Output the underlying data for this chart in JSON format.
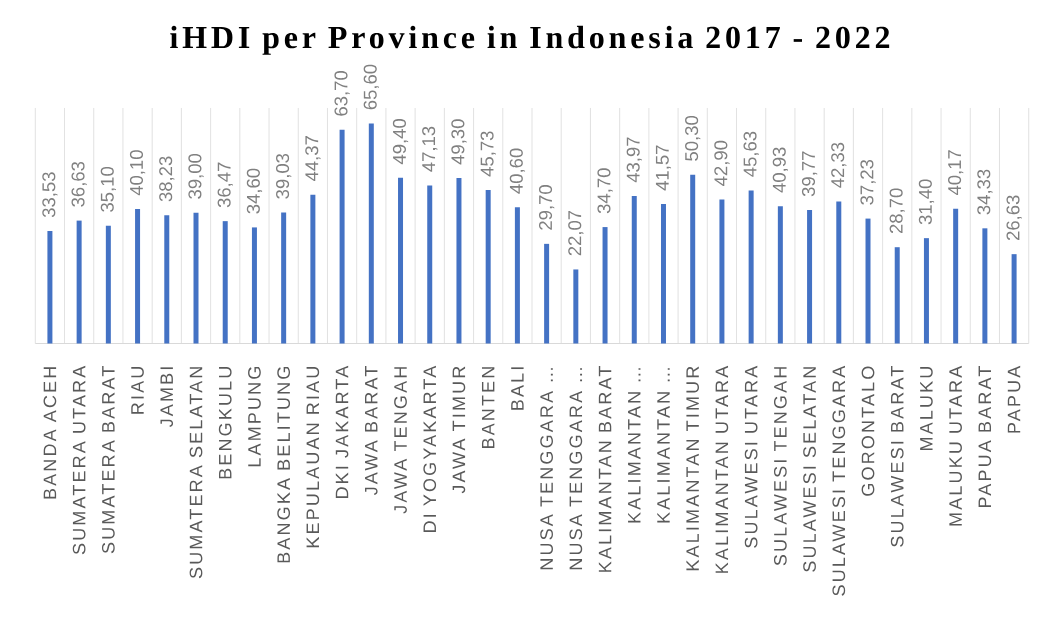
{
  "chart_data": {
    "type": "bar",
    "title": "iHDI per Province in Indonesia 2017 - 2022",
    "categories": [
      "BANDA ACEH",
      "SUMATERA UTARA",
      "SUMATERA BARAT",
      "RIAU",
      "JAMBI",
      "SUMATERA SELATAN",
      "BENGKULU",
      "LAMPUNG",
      "BANGKA BELITUNG",
      "KEPULAUAN RIAU",
      "DKI JAKARTA",
      "JAWA BARAT",
      "JAWA TENGAH",
      "DI YOGYAKARTA",
      "JAWA TIMUR",
      "BANTEN",
      "BALI",
      "NUSA TENGGARA …",
      "NUSA TENGGARA …",
      "KALIMANTAN BARAT",
      "KALIMANTAN …",
      "KALIMANTAN …",
      "KALIMANTAN TIMUR",
      "KALIMANTAN UTARA",
      "SULAWESI UTARA",
      "SULAWESI TENGAH",
      "SULAWESI SELATAN",
      "SULAWESI TENGGARA",
      "GORONTALO",
      "SULAWESI BARAT",
      "MALUKU",
      "MALUKU UTARA",
      "PAPUA BARAT",
      "PAPUA"
    ],
    "values": [
      33.53,
      36.63,
      35.1,
      40.1,
      38.23,
      39.0,
      36.47,
      34.6,
      39.03,
      44.37,
      63.7,
      65.6,
      49.4,
      47.13,
      49.3,
      45.73,
      40.6,
      29.7,
      22.07,
      34.7,
      43.97,
      41.57,
      50.3,
      42.9,
      45.63,
      40.93,
      39.77,
      42.33,
      37.23,
      28.7,
      31.4,
      40.17,
      34.33,
      26.63
    ],
    "value_labels": [
      "33,53",
      "36,63",
      "35,10",
      "40,10",
      "38,23",
      "39,00",
      "36,47",
      "34,60",
      "39,03",
      "44,37",
      "63,70",
      "65,60",
      "49,40",
      "47,13",
      "49,30",
      "45,73",
      "40,60",
      "29,70",
      "22,07",
      "34,70",
      "43,97",
      "41,57",
      "50,30",
      "42,90",
      "45,63",
      "40,93",
      "39,77",
      "42,33",
      "37,23",
      "28,70",
      "31,40",
      "40,17",
      "34,33",
      "26,63"
    ],
    "color": "#4472c4",
    "grid": "x"
  }
}
